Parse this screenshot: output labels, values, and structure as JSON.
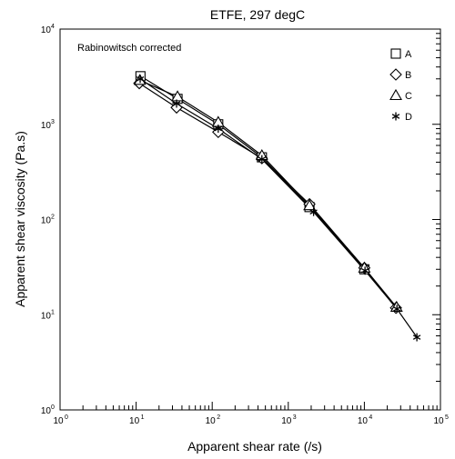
{
  "chart_data": {
    "type": "line",
    "title": "ETFE, 297 degC",
    "xlabel": "Apparent shear rate (/s)",
    "ylabel": "Apparent shear viscosity (Pa.s)",
    "annotation": "Rabinowitsch corrected",
    "x_scale": "log",
    "y_scale": "log",
    "xlim": [
      1,
      100000
    ],
    "ylim": [
      1,
      10000
    ],
    "x_ticks": [
      {
        "base": "10",
        "exp": "0",
        "value": 1
      },
      {
        "base": "10",
        "exp": "1",
        "value": 10
      },
      {
        "base": "10",
        "exp": "2",
        "value": 100
      },
      {
        "base": "10",
        "exp": "3",
        "value": 1000
      },
      {
        "base": "10",
        "exp": "4",
        "value": 10000
      },
      {
        "base": "10",
        "exp": "5",
        "value": 100000
      }
    ],
    "y_ticks": [
      {
        "base": "10",
        "exp": "0",
        "value": 1
      },
      {
        "base": "10",
        "exp": "1",
        "value": 10
      },
      {
        "base": "10",
        "exp": "2",
        "value": 100
      },
      {
        "base": "10",
        "exp": "3",
        "value": 1000
      },
      {
        "base": "10",
        "exp": "4",
        "value": 10000
      }
    ],
    "grid": false,
    "legend_position": "top-right",
    "series": [
      {
        "name": "A",
        "marker": "square",
        "points": [
          [
            11.4,
            3200
          ],
          [
            35,
            1850
          ],
          [
            120,
            1000
          ],
          [
            450,
            450
          ],
          [
            1900,
            135
          ],
          [
            10000,
            30
          ]
        ]
      },
      {
        "name": "B",
        "marker": "diamond",
        "points": [
          [
            11.0,
            2700
          ],
          [
            34,
            1500
          ],
          [
            120,
            830
          ],
          [
            450,
            440
          ],
          [
            1900,
            145
          ],
          [
            10000,
            31
          ],
          [
            26000,
            11.8
          ]
        ]
      },
      {
        "name": "C",
        "marker": "triangle",
        "points": [
          [
            11.2,
            2900
          ],
          [
            35,
            1950
          ],
          [
            120,
            1050
          ],
          [
            450,
            470
          ],
          [
            1900,
            140
          ],
          [
            10000,
            31
          ],
          [
            26500,
            12
          ]
        ]
      },
      {
        "name": "D",
        "marker": "star",
        "points": [
          [
            11.3,
            3000
          ],
          [
            34,
            1650
          ],
          [
            120,
            900
          ],
          [
            450,
            430
          ],
          [
            2150,
            120
          ],
          [
            10200,
            29
          ],
          [
            26800,
            11.5
          ],
          [
            49000,
            5.8
          ]
        ]
      }
    ]
  }
}
